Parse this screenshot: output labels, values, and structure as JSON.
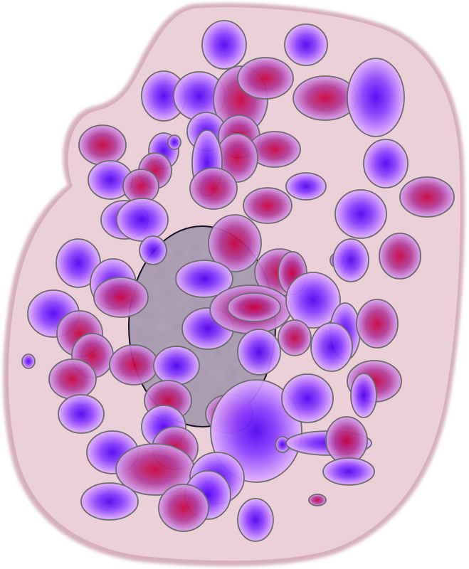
{
  "image": {
    "subject": "cell-illustration",
    "colors": {
      "background": "#ffffff",
      "cytoplasm_fill": "#ecd0d8",
      "cytoplasm_edge": "#d6afbd",
      "nucleus_fill": "#a798ac",
      "nucleus_outline": "#151025",
      "granule_outline": "#6b6b6b",
      "granule_blue_core": "#4e00f0",
      "granule_blue_mid": "#8a3cff",
      "granule_blue_edge": "#e3b6ff",
      "granule_red_core": "#c8003c",
      "granule_red_mid": "#b23c9a",
      "granule_red_edge": "#d7a6f2"
    },
    "icons": [
      "cytoplasm-shape",
      "nucleus-shape",
      "granule-blue",
      "granule-red"
    ]
  }
}
